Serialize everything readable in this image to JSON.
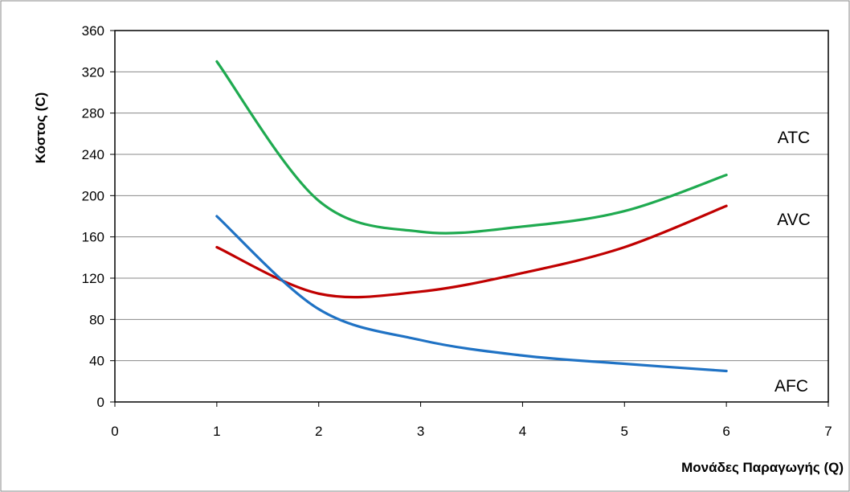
{
  "chart_data": {
    "type": "line",
    "xlabel": "Μονάδες Παραγωγής (Q)",
    "ylabel": "Κόστος (C)",
    "xlim": [
      0,
      7
    ],
    "ylim": [
      0,
      360
    ],
    "xticks": [
      0,
      1,
      2,
      3,
      4,
      5,
      6,
      7
    ],
    "yticks": [
      0,
      40,
      80,
      120,
      160,
      200,
      240,
      280,
      320,
      360
    ],
    "grid": "horizontal",
    "series": [
      {
        "name": "ATC",
        "color": "#1faa50",
        "x": [
          1,
          2,
          3,
          4,
          5,
          6
        ],
        "values": [
          330,
          195,
          165,
          170,
          185,
          220
        ]
      },
      {
        "name": "AVC",
        "color": "#c00000",
        "x": [
          1,
          2,
          3,
          4,
          5,
          6
        ],
        "values": [
          150,
          105,
          107,
          125,
          150,
          190
        ]
      },
      {
        "name": "AFC",
        "color": "#1f72c4",
        "x": [
          1,
          2,
          3,
          4,
          5,
          6
        ],
        "values": [
          180,
          90,
          60,
          45,
          37,
          30
        ]
      }
    ]
  }
}
